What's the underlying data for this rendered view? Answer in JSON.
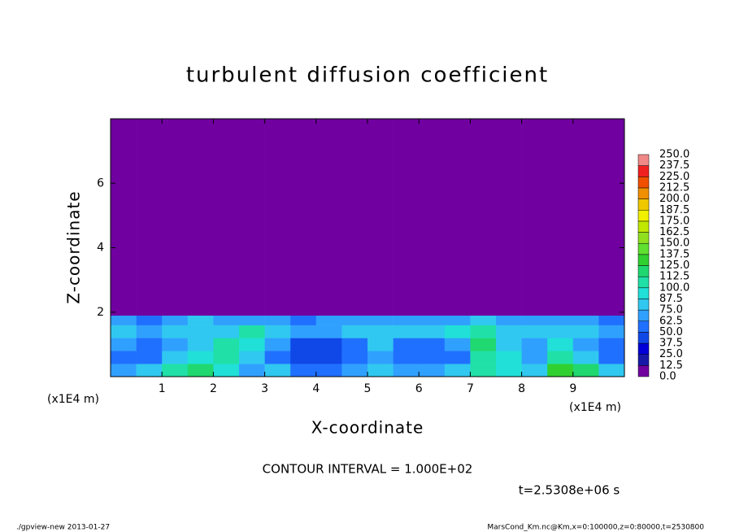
{
  "chart_data": {
    "type": "heatmap",
    "title": "turbulent diffusion coefficient",
    "x_label": "X-coordinate",
    "y_label": "Z-coordinate",
    "x_unit_label": "(x1E4 m)",
    "y_unit_label": "(x1E4 m)",
    "annotation": "CONTOUR INTERVAL = 1.000E+02",
    "time_label": "t=2.5308e+06 s",
    "footer_left": "./gpview-new  2013-01-27",
    "footer_right": "MarsCond_Km.nc@Km,x=0:100000,z=0:80000,t=2530800",
    "xlim": [
      0,
      10
    ],
    "ylim": [
      0,
      8
    ],
    "xticks": [
      1,
      2,
      3,
      4,
      5,
      6,
      7,
      8,
      9
    ],
    "yticks": [
      2,
      4,
      6
    ],
    "xbins": [
      0,
      0.5,
      1,
      1.5,
      2,
      2.5,
      3,
      3.5,
      4,
      4.5,
      5,
      5.5,
      6,
      6.5,
      7,
      7.5,
      8,
      8.5,
      9,
      9.5,
      10
    ],
    "ybins": [
      0,
      0.4,
      0.8,
      1.2,
      1.6,
      1.9,
      8
    ],
    "values": [
      [
        70,
        80,
        110,
        120,
        90,
        70,
        80,
        60,
        60,
        70,
        75,
        65,
        70,
        85,
        110,
        95,
        80,
        130,
        120,
        85
      ],
      [
        60,
        55,
        75,
        90,
        100,
        80,
        60,
        45,
        40,
        55,
        70,
        50,
        50,
        60,
        100,
        90,
        70,
        110,
        80,
        60
      ],
      [
        65,
        55,
        70,
        85,
        100,
        90,
        65,
        45,
        45,
        60,
        75,
        55,
        55,
        70,
        115,
        85,
        70,
        95,
        70,
        60
      ],
      [
        75,
        70,
        75,
        80,
        85,
        100,
        80,
        70,
        70,
        80,
        85,
        75,
        75,
        90,
        110,
        85,
        75,
        80,
        75,
        70
      ],
      [
        70,
        60,
        70,
        75,
        70,
        65,
        65,
        60,
        70,
        65,
        70,
        65,
        70,
        70,
        80,
        70,
        65,
        70,
        65,
        60
      ],
      [
        0,
        0,
        0,
        0,
        0,
        0,
        0,
        0,
        0,
        0,
        0,
        0,
        0,
        0,
        0,
        0,
        0,
        0,
        0,
        0
      ]
    ],
    "colorbar_ticks": [
      {
        "value": 0,
        "label": "0.0"
      },
      12.5,
      {
        "value": 25,
        "label": "25.0"
      },
      37.5,
      {
        "value": 50,
        "label": "50.0"
      },
      62.5,
      {
        "value": 75,
        "label": "75.0"
      },
      87.5,
      {
        "value": 100,
        "label": "100.0"
      },
      112.5,
      {
        "value": 125,
        "label": "125.0"
      },
      137.5,
      {
        "value": 150,
        "label": "150.0"
      },
      162.5,
      {
        "value": 175,
        "label": "175.0"
      },
      187.5,
      {
        "value": 200,
        "label": "200.0"
      },
      212.5,
      {
        "value": 225,
        "label": "225.0"
      },
      237.5,
      {
        "value": 250,
        "label": "250.0"
      }
    ],
    "colors": [
      "#7000a0",
      "#1818a8",
      "#0000d8",
      "#1048e8",
      "#2070ff",
      "#30a0ff",
      "#30c8f0",
      "#20e0d8",
      "#20e0a8",
      "#20d870",
      "#30d030",
      "#60e030",
      "#90e020",
      "#c0e800",
      "#f0f000",
      "#f0c800",
      "#f09000",
      "#f05000",
      "#f02020",
      "#f08888"
    ]
  }
}
